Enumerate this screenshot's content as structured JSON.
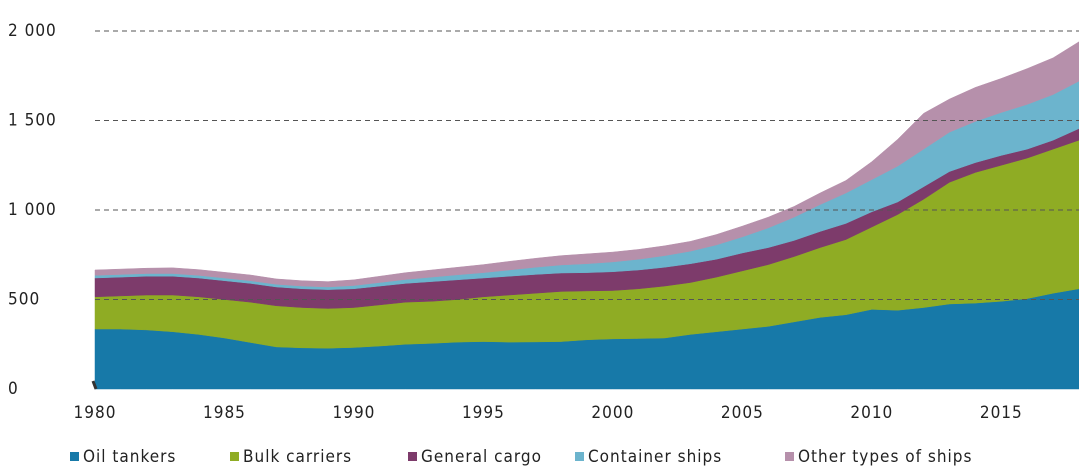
{
  "chart_data": {
    "type": "stacked-area",
    "x": [
      1980,
      1981,
      1982,
      1983,
      1984,
      1985,
      1986,
      1987,
      1988,
      1989,
      1990,
      1991,
      1992,
      1993,
      1994,
      1995,
      1996,
      1997,
      1998,
      1999,
      2000,
      2001,
      2002,
      2003,
      2004,
      2005,
      2006,
      2007,
      2008,
      2009,
      2010,
      2011,
      2012,
      2013,
      2014,
      2015,
      2016,
      2017,
      2018
    ],
    "xlim": [
      1980,
      2018
    ],
    "xticks": [
      1980,
      1985,
      1990,
      1995,
      2000,
      2005,
      2010,
      2015
    ],
    "ylim": [
      0,
      2000
    ],
    "yticks": [
      0,
      500,
      {
        "value": 1000,
        "label": "1 000"
      },
      {
        "value": 1500,
        "label": "1 500"
      },
      {
        "value": 2000,
        "label": "2 000"
      }
    ],
    "grid": true,
    "legend": "bottom",
    "series": [
      {
        "name": "Oil tankers",
        "color": "#1779a8",
        "values": [
          335,
          335,
          330,
          320,
          305,
          285,
          260,
          235,
          230,
          228,
          232,
          240,
          250,
          255,
          262,
          265,
          262,
          263,
          265,
          275,
          280,
          282,
          285,
          305,
          320,
          335,
          350,
          375,
          400,
          415,
          445,
          440,
          455,
          475,
          480,
          490,
          505,
          535,
          560
        ]
      },
      {
        "name": "Bulk carriers",
        "color": "#8fac24",
        "values": [
          180,
          185,
          195,
          205,
          210,
          215,
          225,
          230,
          225,
          222,
          223,
          230,
          235,
          235,
          238,
          250,
          263,
          272,
          280,
          273,
          270,
          278,
          290,
          290,
          305,
          325,
          345,
          365,
          390,
          420,
          460,
          535,
          605,
          680,
          730,
          760,
          785,
          805,
          830
        ]
      },
      {
        "name": "General cargo",
        "color": "#7d3b6b",
        "values": [
          105,
          105,
          105,
          105,
          105,
          105,
          105,
          105,
          105,
          105,
          105,
          105,
          105,
          110,
          110,
          105,
          105,
          105,
          103,
          102,
          105,
          105,
          105,
          105,
          100,
          100,
          95,
          90,
          90,
          90,
          85,
          70,
          70,
          60,
          55,
          55,
          50,
          50,
          65
        ]
      },
      {
        "name": "Container ships",
        "color": "#6cb4cd",
        "values": [
          15,
          15,
          15,
          15,
          15,
          15,
          15,
          15,
          15,
          15,
          18,
          20,
          22,
          25,
          28,
          30,
          35,
          40,
          45,
          50,
          55,
          60,
          65,
          70,
          80,
          90,
          110,
          130,
          150,
          170,
          180,
          200,
          210,
          220,
          230,
          240,
          250,
          255,
          265
        ]
      },
      {
        "name": "Other types of ships",
        "color": "#b690ab",
        "values": [
          30,
          30,
          30,
          32,
          32,
          32,
          32,
          30,
          30,
          30,
          32,
          35,
          38,
          40,
          42,
          45,
          48,
          50,
          52,
          55,
          55,
          55,
          55,
          55,
          58,
          60,
          60,
          60,
          65,
          70,
          100,
          150,
          200,
          185,
          190,
          190,
          200,
          205,
          220
        ]
      }
    ]
  }
}
